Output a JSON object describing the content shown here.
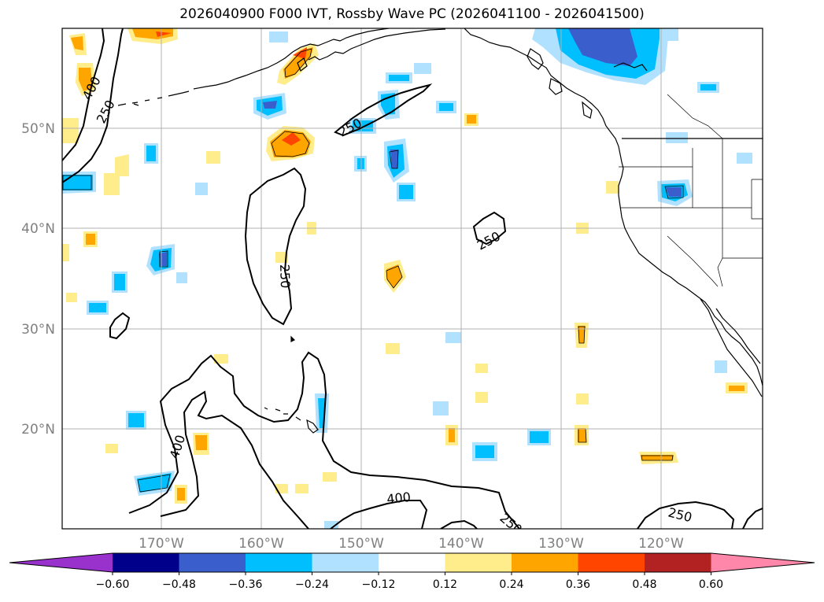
{
  "title": "2026040900 F000 IVT, Rossby Wave PC (2026041100 - 2026041500)",
  "lon_labels": [
    "170°W",
    "160°W",
    "150°W",
    "140°W",
    "130°W",
    "120°W"
  ],
  "lat_labels": [
    "50°N",
    "40°N",
    "30°N",
    "20°N"
  ],
  "colorbar": {
    "tick_labels": [
      "−0.60",
      "−0.48",
      "−0.36",
      "−0.24",
      "−0.12",
      "0.12",
      "0.24",
      "0.36",
      "0.48",
      "0.60"
    ],
    "colors": [
      "#9932cc",
      "#00008b",
      "#3a5fcd",
      "#00bfff",
      "#b0e2ff",
      "#ffffff",
      "#ffec8b",
      "#ffa500",
      "#ff4500",
      "#b22222",
      "#ff88aa"
    ]
  },
  "contour_labels": {
    "c400a": "400",
    "c250a": "250",
    "c250b": "250",
    "c250c": "250",
    "c250d": "250",
    "c400b": "400",
    "c400c": "400",
    "c250e": "250",
    "c250f": "250"
  },
  "chart_data": {
    "type": "map",
    "title": "2026040900 F000 IVT, Rossby Wave PC (2026041100 - 2026041500)",
    "extent": {
      "lon": [
        -180,
        -110
      ],
      "lat": [
        10,
        60
      ]
    },
    "fill_levels": [
      -0.6,
      -0.48,
      -0.36,
      -0.24,
      -0.12,
      0.12,
      0.24,
      0.36,
      0.48,
      0.6
    ],
    "contour_levels_ivt": [
      250,
      400
    ],
    "grid": true
  }
}
